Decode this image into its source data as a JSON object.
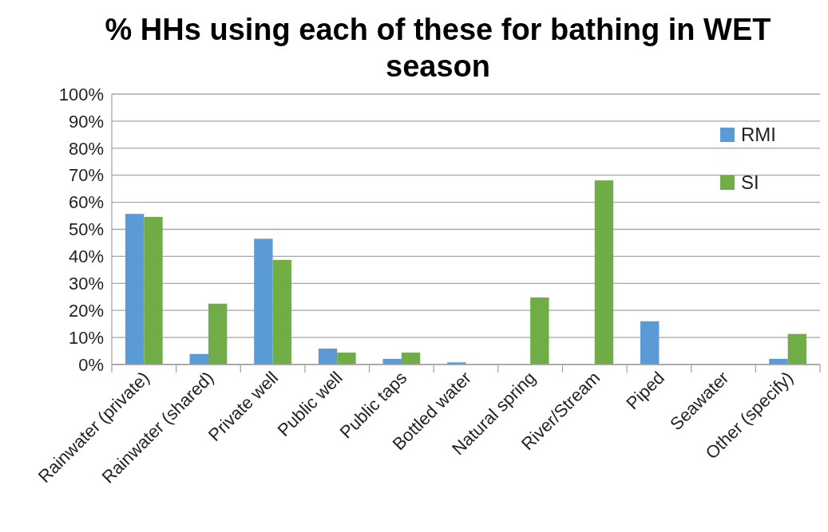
{
  "chart_data": {
    "type": "bar",
    "title": "% HHs using each of these for bathing in WET season",
    "categories": [
      "Rainwater (private)",
      "Rainwater (shared)",
      "Private well",
      "Public well",
      "Public taps",
      "Bottled water",
      "Natural spring",
      "River/Stream",
      "Piped",
      "Seawater",
      "Other (specify)"
    ],
    "series": [
      {
        "name": "RMI",
        "color": "#5b9bd5",
        "values": [
          55.7,
          3.9,
          46.5,
          5.9,
          2.1,
          0.8,
          0,
          0,
          16,
          0,
          2.1
        ]
      },
      {
        "name": "SI",
        "color": "#70ad47",
        "values": [
          54.6,
          22.5,
          38.7,
          4.4,
          4.4,
          0,
          24.8,
          68.1,
          0,
          0,
          11.3
        ]
      }
    ],
    "ylim": [
      0,
      100
    ],
    "yticks": [
      {
        "value": 0,
        "label": "0%"
      },
      {
        "value": 10,
        "label": "10%"
      },
      {
        "value": 20,
        "label": "20%"
      },
      {
        "value": 30,
        "label": "30%"
      },
      {
        "value": 40,
        "label": "40%"
      },
      {
        "value": 50,
        "label": "50%"
      },
      {
        "value": 60,
        "label": "60%"
      },
      {
        "value": 70,
        "label": "70%"
      },
      {
        "value": 80,
        "label": "80%"
      },
      {
        "value": 90,
        "label": "90%"
      },
      {
        "value": 100,
        "label": "100%"
      }
    ],
    "grid": "y",
    "legend": "top right"
  }
}
